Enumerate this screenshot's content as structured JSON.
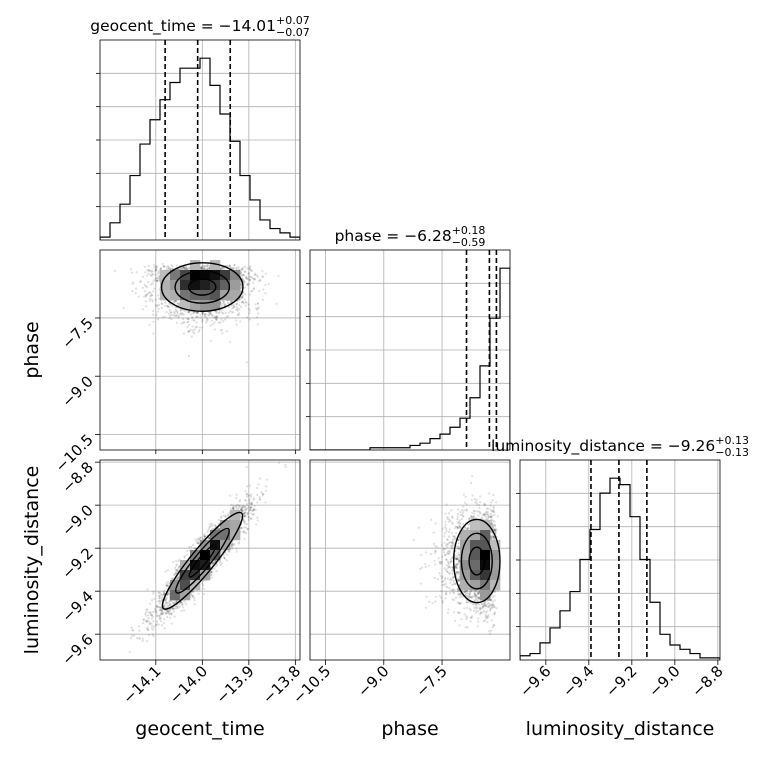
{
  "chart_data": {
    "type": "corner",
    "parameters": [
      "geocent_time",
      "phase",
      "luminosity_distance"
    ],
    "titles": [
      {
        "prefix": "geocent_time = ",
        "median": "−14.01",
        "plus": "+0.07",
        "minus": "−0.07"
      },
      {
        "prefix": "phase = ",
        "median": "−6.28",
        "plus": "+0.18",
        "minus": "−0.59"
      },
      {
        "prefix": "luminosity_distance = ",
        "median": "−9.26",
        "plus": "+0.13",
        "minus": "−0.13"
      }
    ],
    "axis_labels": {
      "x": [
        "geocent_time",
        "phase",
        "luminosity_distance"
      ],
      "y": [
        "phase",
        "luminosity_distance"
      ]
    },
    "ranges": [
      [
        -14.22,
        -13.79
      ],
      [
        -10.9,
        -5.75
      ],
      [
        -9.72,
        -8.79
      ]
    ],
    "ticks": {
      "geocent_time": {
        "values": [
          -14.1,
          -14.0,
          -13.9,
          -13.8
        ],
        "labels": [
          "−14.1",
          "−14.0",
          "−13.9",
          "−13.8"
        ]
      },
      "phase": {
        "values": [
          -10.5,
          -9.0,
          -7.5
        ],
        "labels": [
          "−10.5",
          "−9.0",
          "−7.5"
        ]
      },
      "luminosity_distance": {
        "values": [
          -9.6,
          -9.4,
          -9.2,
          -9.0,
          -8.8
        ],
        "labels": [
          "−9.6",
          "−9.4",
          "−9.2",
          "−9.0",
          "−8.8"
        ]
      }
    },
    "quantiles": {
      "geocent_time": [
        -14.08,
        -14.01,
        -13.94
      ],
      "phase": [
        -6.87,
        -6.28,
        -6.1
      ],
      "luminosity_distance": [
        -9.39,
        -9.26,
        -9.13
      ]
    },
    "histograms": {
      "geocent_time": [
        2,
        12,
        25,
        45,
        67,
        84,
        98,
        110,
        120,
        120,
        127,
        108,
        88,
        69,
        45,
        28,
        14,
        8,
        5,
        2
      ],
      "phase": [
        0,
        0,
        0,
        0,
        0,
        0,
        1,
        1,
        1,
        1,
        2,
        3,
        5,
        7,
        10,
        14,
        23,
        37,
        58,
        80
      ],
      "luminosity_distance": [
        2,
        3,
        8,
        15,
        23,
        32,
        47,
        61,
        78,
        85,
        82,
        67,
        47,
        27,
        12,
        7,
        5,
        3,
        1,
        1
      ]
    },
    "grid": true
  }
}
